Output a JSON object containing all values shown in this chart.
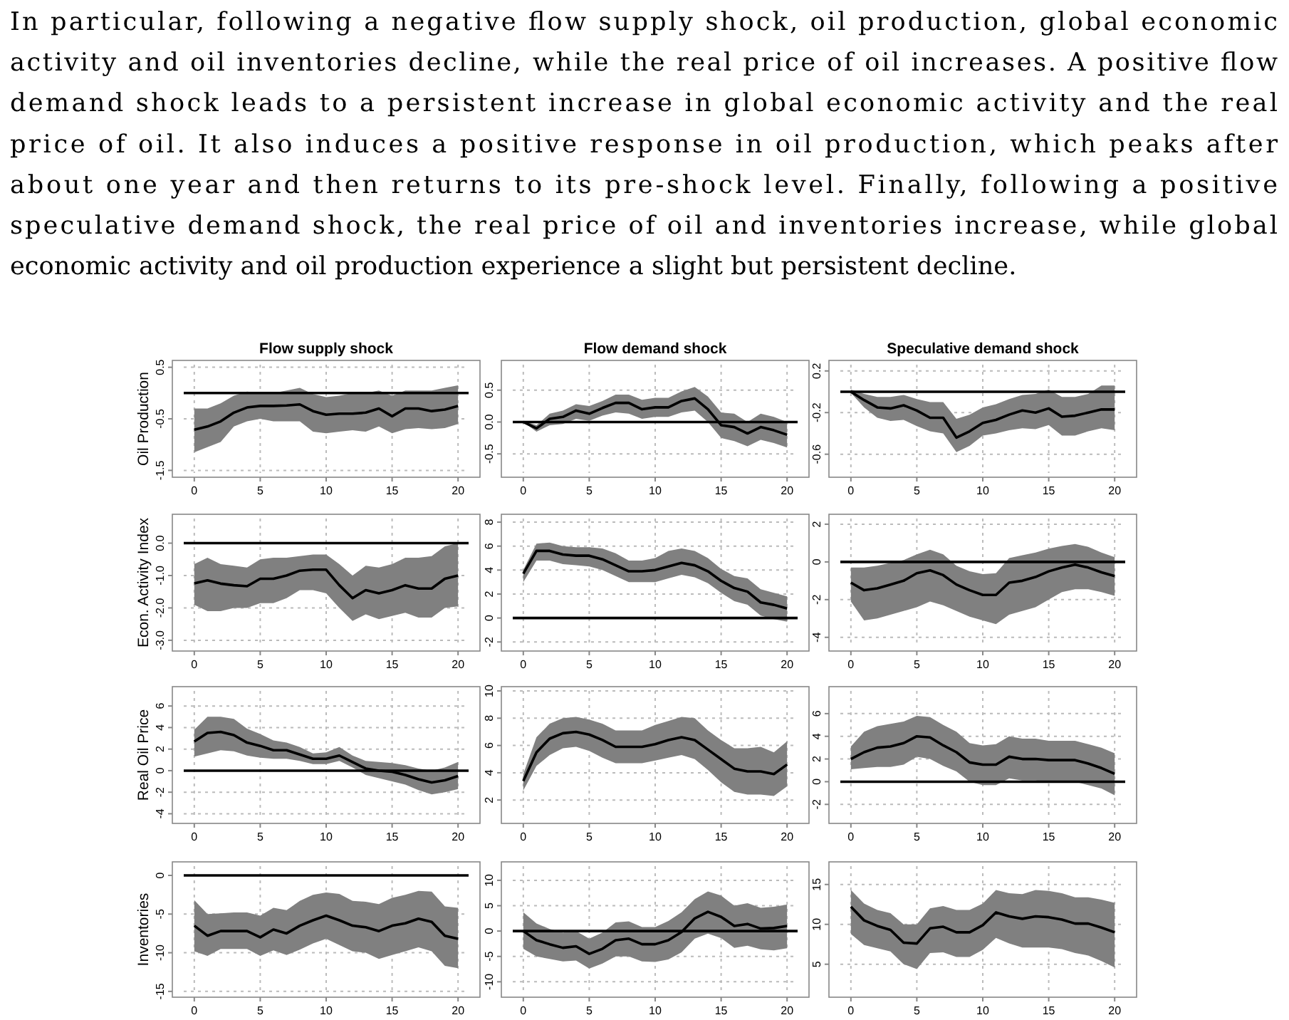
{
  "chart_data": [
    {
      "type": "other",
      "annotations": [
        "In particular, following a negative flow supply shock, oil production, global economic",
        "activity and oil inventories decline, while the real price of oil increases. A positive flow",
        "demand shock leads to a persistent increase in global economic activity and the real",
        "price of oil.  It also induces a positive response in oil production, which peaks after",
        "about one year and then returns to its pre-shock level.  Finally, following a positive",
        "speculative demand shock, the real price of oil and inventories increase, while global",
        "economic activity and oil production experience a slight but persistent decline."
      ]
    },
    {
      "type": "line",
      "title": "Flow supply shock",
      "ylabel": "Oil Production",
      "x": [
        0,
        1,
        2,
        3,
        4,
        5,
        6,
        7,
        8,
        9,
        10,
        11,
        12,
        13,
        14,
        15,
        16,
        17,
        18,
        19,
        20
      ],
      "xlim": [
        -0.8,
        20.8
      ],
      "xticks": [
        0,
        5,
        10,
        15,
        20
      ],
      "ylim": [
        -1.55,
        0.55
      ],
      "yticks": [
        -1.5,
        -0.5,
        0.5
      ],
      "grid": true,
      "ref_lines": [
        {
          "axis": "y",
          "value": 0
        }
      ],
      "series": [
        {
          "color": "#000000",
          "values": [
            -0.71,
            -0.65,
            -0.55,
            -0.38,
            -0.28,
            -0.25,
            -0.25,
            -0.24,
            -0.22,
            -0.35,
            -0.42,
            -0.4,
            -0.4,
            -0.38,
            -0.3,
            -0.45,
            -0.3,
            -0.3,
            -0.35,
            -0.32,
            -0.25
          ],
          "lower": [
            -1.15,
            -1.05,
            -0.95,
            -0.65,
            -0.55,
            -0.5,
            -0.55,
            -0.55,
            -0.55,
            -0.75,
            -0.78,
            -0.75,
            -0.72,
            -0.75,
            -0.65,
            -0.78,
            -0.7,
            -0.68,
            -0.7,
            -0.68,
            -0.6
          ],
          "upper": [
            -0.3,
            -0.3,
            -0.2,
            -0.05,
            0.03,
            0,
            0,
            0.05,
            0.1,
            -0.02,
            -0.08,
            -0.05,
            0,
            0,
            0.05,
            -0.05,
            0.05,
            0.05,
            0.05,
            0.1,
            0.15
          ]
        }
      ]
    },
    {
      "type": "line",
      "title": "Flow demand shock",
      "x": [
        0,
        1,
        2,
        3,
        4,
        5,
        6,
        7,
        8,
        9,
        10,
        11,
        12,
        13,
        14,
        15,
        16,
        17,
        18,
        19,
        20
      ],
      "xlim": [
        -0.8,
        20.8
      ],
      "xticks": [
        0,
        5,
        10,
        15,
        20
      ],
      "ylim": [
        -0.8,
        0.9
      ],
      "yticks": [
        {
          "value": -0.5,
          "label": "-0.5"
        },
        {
          "value": 0,
          "label": "0.0"
        },
        {
          "value": 0.5,
          "label": "0.5"
        }
      ],
      "grid": true,
      "ref_lines": [
        {
          "axis": "y",
          "value": 0
        }
      ],
      "series": [
        {
          "color": "#000000",
          "values": [
            0,
            -0.1,
            0.05,
            0.08,
            0.18,
            0.13,
            0.22,
            0.3,
            0.3,
            0.2,
            0.23,
            0.23,
            0.33,
            0.37,
            0.2,
            -0.05,
            -0.08,
            -0.18,
            -0.08,
            -0.13,
            -0.2
          ],
          "lower": [
            0,
            -0.15,
            -0.05,
            -0.03,
            0.05,
            0.02,
            0.1,
            0.15,
            0.13,
            0.05,
            0.08,
            0.08,
            0.15,
            0.18,
            0,
            -0.25,
            -0.3,
            -0.38,
            -0.28,
            -0.33,
            -0.4
          ],
          "upper": [
            0.02,
            -0.05,
            0.13,
            0.18,
            0.28,
            0.25,
            0.33,
            0.43,
            0.43,
            0.35,
            0.38,
            0.38,
            0.48,
            0.55,
            0.4,
            0.15,
            0.13,
            0,
            0.13,
            0.08,
            0
          ]
        }
      ]
    },
    {
      "type": "line",
      "title": "Speculative demand shock",
      "x": [
        0,
        1,
        2,
        3,
        4,
        5,
        6,
        7,
        8,
        9,
        10,
        11,
        12,
        13,
        14,
        15,
        16,
        17,
        18,
        19,
        20
      ],
      "xlim": [
        -0.8,
        20.8
      ],
      "xticks": [
        0,
        5,
        10,
        15,
        20
      ],
      "ylim": [
        -0.78,
        0.26
      ],
      "yticks": [
        -0.6,
        -0.2,
        0.2
      ],
      "grid": true,
      "ref_lines": [
        {
          "axis": "y",
          "value": 0
        }
      ],
      "series": [
        {
          "color": "#000000",
          "values": [
            0,
            -0.08,
            -0.15,
            -0.16,
            -0.13,
            -0.18,
            -0.25,
            -0.25,
            -0.44,
            -0.38,
            -0.3,
            -0.27,
            -0.22,
            -0.18,
            -0.2,
            -0.16,
            -0.24,
            -0.23,
            -0.2,
            -0.17,
            -0.17
          ],
          "lower": [
            -0.01,
            -0.15,
            -0.25,
            -0.28,
            -0.27,
            -0.33,
            -0.38,
            -0.4,
            -0.58,
            -0.52,
            -0.42,
            -0.4,
            -0.37,
            -0.35,
            -0.36,
            -0.32,
            -0.42,
            -0.42,
            -0.38,
            -0.35,
            -0.37
          ],
          "upper": [
            0.02,
            -0.02,
            -0.05,
            -0.05,
            -0.03,
            -0.07,
            -0.1,
            -0.1,
            -0.26,
            -0.22,
            -0.15,
            -0.12,
            -0.07,
            -0.03,
            -0.02,
            0.02,
            -0.05,
            -0.05,
            -0.02,
            0.06,
            0.06
          ]
        }
      ]
    },
    {
      "type": "line",
      "ylabel": "Econ. Activity Index",
      "x": [
        0,
        1,
        2,
        3,
        4,
        5,
        6,
        7,
        8,
        9,
        10,
        11,
        12,
        13,
        14,
        15,
        16,
        17,
        18,
        19,
        20
      ],
      "xlim": [
        -0.8,
        20.8
      ],
      "xticks": [
        0,
        5,
        10,
        15,
        20
      ],
      "ylim": [
        -3.2,
        0.76
      ],
      "yticks": [
        {
          "value": -3,
          "label": "-3.0"
        },
        {
          "value": -2,
          "label": "-2.0"
        },
        {
          "value": -1,
          "label": "-1.0"
        },
        {
          "value": 0,
          "label": "0.0"
        }
      ],
      "grid": true,
      "ref_lines": [
        {
          "axis": "y",
          "value": 0
        }
      ],
      "series": [
        {
          "color": "#000000",
          "values": [
            -1.24,
            -1.15,
            -1.25,
            -1.3,
            -1.33,
            -1.1,
            -1.1,
            -1,
            -0.85,
            -0.82,
            -0.82,
            -1.3,
            -1.7,
            -1.45,
            -1.55,
            -1.45,
            -1.3,
            -1.4,
            -1.4,
            -1.1,
            -1
          ],
          "lower": [
            -1.9,
            -2.1,
            -2.1,
            -2,
            -2,
            -1.85,
            -1.85,
            -1.7,
            -1.45,
            -1.45,
            -1.55,
            -2,
            -2.4,
            -2.2,
            -2.35,
            -2.25,
            -2.15,
            -2.3,
            -2.3,
            -2,
            -1.95
          ],
          "upper": [
            -0.65,
            -0.45,
            -0.65,
            -0.7,
            -0.75,
            -0.5,
            -0.45,
            -0.45,
            -0.4,
            -0.35,
            -0.35,
            -0.65,
            -1,
            -0.7,
            -0.75,
            -0.65,
            -0.45,
            -0.45,
            -0.4,
            -0.1,
            0
          ]
        }
      ]
    },
    {
      "type": "line",
      "x": [
        0,
        1,
        2,
        3,
        4,
        5,
        6,
        7,
        8,
        9,
        10,
        11,
        12,
        13,
        14,
        15,
        16,
        17,
        18,
        19,
        20
      ],
      "xlim": [
        -0.8,
        20.8
      ],
      "xticks": [
        0,
        5,
        10,
        15,
        20
      ],
      "ylim": [
        -2.4,
        8.3
      ],
      "yticks": [
        -2,
        0,
        2,
        4,
        6,
        8
      ],
      "grid": true,
      "ref_lines": [
        {
          "axis": "y",
          "value": 0
        }
      ],
      "series": [
        {
          "color": "#000000",
          "values": [
            3.7,
            5.6,
            5.6,
            5.3,
            5.2,
            5.2,
            4.9,
            4.4,
            3.9,
            3.9,
            4,
            4.3,
            4.6,
            4.4,
            3.9,
            3.1,
            2.5,
            2.2,
            1.3,
            1.1,
            0.8
          ],
          "lower": [
            3,
            4.8,
            4.8,
            4.5,
            4.4,
            4.3,
            4,
            3.5,
            3,
            3,
            3,
            3.3,
            3.6,
            3.4,
            2.9,
            2.1,
            1.4,
            1.1,
            0.2,
            -0.1,
            -0.3
          ],
          "upper": [
            4,
            6.2,
            6.3,
            6,
            5.9,
            5.9,
            5.8,
            5.4,
            4.8,
            4.8,
            5,
            5.6,
            5.8,
            5.6,
            5,
            4.1,
            3.5,
            3.3,
            2.4,
            2.1,
            1.8
          ]
        }
      ]
    },
    {
      "type": "line",
      "x": [
        0,
        1,
        2,
        3,
        4,
        5,
        6,
        7,
        8,
        9,
        10,
        11,
        12,
        13,
        14,
        15,
        16,
        17,
        18,
        19,
        20
      ],
      "xlim": [
        -0.8,
        20.8
      ],
      "xticks": [
        0,
        5,
        10,
        15,
        20
      ],
      "ylim": [
        -4.5,
        2.3
      ],
      "yticks": [
        -4,
        -2,
        0,
        2
      ],
      "grid": true,
      "ref_lines": [
        {
          "axis": "y",
          "value": 0
        }
      ],
      "series": [
        {
          "color": "#000000",
          "values": [
            -1.1,
            -1.5,
            -1.4,
            -1.2,
            -1,
            -0.6,
            -0.45,
            -0.7,
            -1.2,
            -1.5,
            -1.75,
            -1.75,
            -1.1,
            -1,
            -0.8,
            -0.5,
            -0.3,
            -0.15,
            -0.3,
            -0.55,
            -0.75
          ],
          "lower": [
            -2.1,
            -3.1,
            -3,
            -2.8,
            -2.6,
            -2.4,
            -2.1,
            -2.3,
            -2.6,
            -2.9,
            -3.1,
            -3.3,
            -2.8,
            -2.6,
            -2.4,
            -2,
            -1.6,
            -1.45,
            -1.45,
            -1.6,
            -1.8
          ],
          "upper": [
            -0.3,
            -0.3,
            -0.2,
            -0.05,
            0.1,
            0.4,
            0.65,
            0.4,
            -0.2,
            -0.5,
            -0.65,
            -0.6,
            0.2,
            0.35,
            0.5,
            0.7,
            0.85,
            0.95,
            0.8,
            0.5,
            0.25
          ]
        }
      ]
    },
    {
      "type": "line",
      "ylabel": "Real Oil Price",
      "x": [
        0,
        1,
        2,
        3,
        4,
        5,
        6,
        7,
        8,
        9,
        10,
        11,
        12,
        13,
        14,
        15,
        16,
        17,
        18,
        19,
        20
      ],
      "xlim": [
        -0.8,
        20.8
      ],
      "xticks": [
        0,
        5,
        10,
        15,
        20
      ],
      "ylim": [
        -4.5,
        7.4
      ],
      "yticks": [
        -4,
        -2,
        0,
        2,
        4,
        6
      ],
      "grid": true,
      "ref_lines": [
        {
          "axis": "y",
          "value": 0
        }
      ],
      "series": [
        {
          "color": "#000000",
          "values": [
            2.7,
            3.5,
            3.6,
            3.3,
            2.6,
            2.3,
            1.9,
            1.9,
            1.5,
            1.1,
            1.1,
            1.4,
            0.8,
            0.2,
            0,
            -0.1,
            -0.4,
            -0.8,
            -1.1,
            -0.9,
            -0.5
          ],
          "lower": [
            1.3,
            1.6,
            1.9,
            1.8,
            1.4,
            1.2,
            1.1,
            1.1,
            0.9,
            0.6,
            0.6,
            0.9,
            0.3,
            -0.4,
            -0.7,
            -1,
            -1.3,
            -1.8,
            -2.2,
            -2,
            -1.7
          ],
          "upper": [
            3.8,
            5,
            5,
            4.8,
            3.9,
            3.4,
            2.8,
            2.6,
            2.2,
            1.6,
            1.7,
            2.2,
            1.4,
            0.9,
            0.8,
            0.7,
            0.5,
            0.2,
            0,
            0.3,
            0.8
          ]
        }
      ]
    },
    {
      "type": "line",
      "x": [
        0,
        1,
        2,
        3,
        4,
        5,
        6,
        7,
        8,
        9,
        10,
        11,
        12,
        13,
        14,
        15,
        16,
        17,
        18,
        19,
        20
      ],
      "xlim": [
        -0.8,
        20.8
      ],
      "xticks": [
        0,
        5,
        10,
        15,
        20
      ],
      "ylim": [
        0.6,
        10
      ],
      "yticks": [
        2,
        4,
        6,
        8,
        10
      ],
      "grid": true,
      "series": [
        {
          "color": "#000000",
          "values": [
            3.4,
            5.5,
            6.5,
            6.9,
            7,
            6.8,
            6.4,
            5.9,
            5.9,
            5.9,
            6.1,
            6.4,
            6.6,
            6.4,
            5.7,
            5,
            4.3,
            4.1,
            4.1,
            3.9,
            4.6
          ],
          "lower": [
            2.7,
            4.5,
            5.3,
            5.8,
            5.9,
            5.6,
            5.1,
            4.7,
            4.7,
            4.7,
            4.9,
            5.1,
            5.3,
            5,
            4.2,
            3.3,
            2.6,
            2.4,
            2.4,
            2.3,
            3
          ],
          "upper": [
            3.9,
            6.6,
            7.6,
            8,
            8.1,
            7.9,
            7.6,
            7.1,
            7.1,
            7.1,
            7.5,
            7.8,
            8.1,
            8,
            7.1,
            6.4,
            5.8,
            5.8,
            5.9,
            5.5,
            6.3
          ]
        }
      ]
    },
    {
      "type": "line",
      "x": [
        0,
        1,
        2,
        3,
        4,
        5,
        6,
        7,
        8,
        9,
        10,
        11,
        12,
        13,
        14,
        15,
        16,
        17,
        18,
        19,
        20
      ],
      "xlim": [
        -0.8,
        20.8
      ],
      "xticks": [
        0,
        5,
        10,
        15,
        20
      ],
      "ylim": [
        -3.3,
        8
      ],
      "yticks": [
        -2,
        0,
        2,
        4,
        6
      ],
      "grid": true,
      "ref_lines": [
        {
          "axis": "y",
          "value": 0
        }
      ],
      "series": [
        {
          "color": "#000000",
          "values": [
            2,
            2.6,
            3,
            3.1,
            3.4,
            4,
            3.9,
            3.2,
            2.6,
            1.7,
            1.5,
            1.5,
            2.2,
            2,
            2,
            1.9,
            1.9,
            1.9,
            1.6,
            1.2,
            0.7
          ],
          "lower": [
            1.1,
            1.2,
            1.3,
            1.3,
            1.5,
            2.2,
            2,
            1.4,
            0.9,
            0,
            -0.3,
            -0.3,
            0.3,
            0.1,
            0.1,
            0,
            0,
            0,
            -0.3,
            -0.6,
            -1.2
          ],
          "upper": [
            3.1,
            4.4,
            4.9,
            5.1,
            5.3,
            5.8,
            5.7,
            5,
            4.4,
            3.4,
            3.2,
            3.3,
            4,
            3.8,
            3.8,
            3.6,
            3.6,
            3.6,
            3.3,
            3,
            2.5
          ]
        }
      ]
    },
    {
      "type": "line",
      "ylabel": "Inventories",
      "x": [
        0,
        1,
        2,
        3,
        4,
        5,
        6,
        7,
        8,
        9,
        10,
        11,
        12,
        13,
        14,
        15,
        16,
        17,
        18,
        19,
        20
      ],
      "xlim": [
        -0.8,
        20.8
      ],
      "xticks": [
        0,
        5,
        10,
        15,
        20
      ],
      "ylim": [
        -15.2,
        1.2
      ],
      "yticks": [
        -15,
        -10,
        -5,
        0
      ],
      "grid": true,
      "ref_lines": [
        {
          "axis": "y",
          "value": 0
        }
      ],
      "series": [
        {
          "color": "#000000",
          "values": [
            -6.5,
            -7.8,
            -7.2,
            -7.2,
            -7.2,
            -8,
            -7,
            -7.5,
            -6.5,
            -5.8,
            -5.2,
            -5.8,
            -6.5,
            -6.7,
            -7.2,
            -6.5,
            -6.2,
            -5.6,
            -6,
            -7.8,
            -8.2
          ],
          "lower": [
            -9.8,
            -10.4,
            -9.5,
            -9.5,
            -9.5,
            -10.4,
            -9.7,
            -10.3,
            -9.6,
            -8.8,
            -8.2,
            -9,
            -9.8,
            -10,
            -10.8,
            -10.3,
            -9.8,
            -9.3,
            -9.8,
            -11.7,
            -12
          ],
          "upper": [
            -3.2,
            -5,
            -4.9,
            -4.8,
            -4.8,
            -5.2,
            -4.2,
            -4.5,
            -3.3,
            -2.5,
            -2.2,
            -2.4,
            -3.3,
            -3.4,
            -3.7,
            -2.9,
            -2.5,
            -2,
            -2.1,
            -4,
            -4.2
          ]
        }
      ]
    },
    {
      "type": "line",
      "x": [
        0,
        1,
        2,
        3,
        4,
        5,
        6,
        7,
        8,
        9,
        10,
        11,
        12,
        13,
        14,
        15,
        16,
        17,
        18,
        19,
        20
      ],
      "xlim": [
        -0.8,
        20.8
      ],
      "xticks": [
        0,
        5,
        10,
        15,
        20
      ],
      "ylim": [
        -12.2,
        12.8
      ],
      "yticks": [
        -10,
        -5,
        0,
        5,
        10
      ],
      "grid": true,
      "ref_lines": [
        {
          "axis": "y",
          "value": 0
        }
      ],
      "series": [
        {
          "color": "#000000",
          "values": [
            0,
            -1.8,
            -2.6,
            -3.3,
            -3,
            -4.5,
            -3.5,
            -1.8,
            -1.5,
            -2.6,
            -2.6,
            -1.8,
            -0.2,
            2.5,
            3.8,
            2.8,
            1,
            1.4,
            0.5,
            0.6,
            1
          ],
          "lower": [
            -3.5,
            -5,
            -5.5,
            -6,
            -5.8,
            -7.4,
            -6.4,
            -5,
            -5,
            -6,
            -6.1,
            -5.6,
            -4.2,
            -1.5,
            -0.5,
            -1.4,
            -3.3,
            -2.9,
            -3.6,
            -3.8,
            -3.4
          ],
          "upper": [
            3.7,
            1.5,
            0.4,
            -0.3,
            0,
            -1.5,
            -0.3,
            1.7,
            1.9,
            0.8,
            0.8,
            2,
            3.7,
            6.3,
            7.8,
            7,
            5,
            5.5,
            4.6,
            4.8,
            5.2
          ]
        }
      ]
    },
    {
      "type": "line",
      "x": [
        0,
        1,
        2,
        3,
        4,
        5,
        6,
        7,
        8,
        9,
        10,
        11,
        12,
        13,
        14,
        15,
        16,
        17,
        18,
        19,
        20
      ],
      "xlim": [
        -0.8,
        20.8
      ],
      "xticks": [
        0,
        5,
        10,
        15,
        20
      ],
      "ylim": [
        1.4,
        17.3
      ],
      "yticks": [
        5,
        10,
        15
      ],
      "grid": true,
      "series": [
        {
          "color": "#000000",
          "values": [
            12.2,
            10.5,
            9.8,
            9.3,
            7.7,
            7.6,
            9.5,
            9.7,
            9,
            9,
            9.9,
            11.5,
            11,
            10.7,
            11,
            10.9,
            10.6,
            10.1,
            10.1,
            9.6,
            9
          ],
          "lower": [
            8.8,
            7.4,
            7,
            6.6,
            5,
            4.4,
            6.4,
            6.5,
            5.9,
            5.9,
            6.8,
            8.3,
            7.6,
            7.1,
            7.1,
            7.1,
            6.9,
            6.4,
            6.1,
            5.4,
            4.6
          ],
          "upper": [
            14.3,
            12.6,
            11.8,
            11.4,
            10,
            10,
            12,
            12.3,
            11.8,
            11.8,
            12.6,
            14.3,
            13.9,
            13.8,
            14.3,
            14.2,
            13.9,
            13.4,
            13.4,
            13.1,
            12.7
          ]
        }
      ]
    }
  ]
}
